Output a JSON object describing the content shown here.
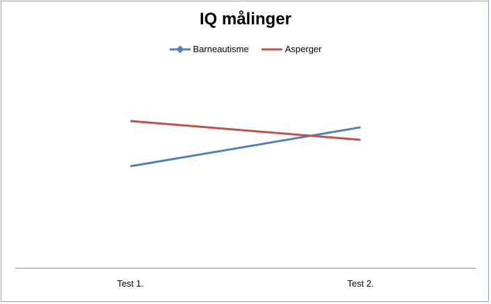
{
  "chart_data": {
    "type": "line",
    "title": "IQ målinger",
    "categories": [
      "Test 1.",
      "Test 2."
    ],
    "series": [
      {
        "name": "Barneautisme",
        "values": [
          46,
          102
        ],
        "color": "#4f81bd",
        "marker": "diamond"
      },
      {
        "name": "Asperger",
        "values": [
          111,
          84
        ],
        "color": "#c0504d",
        "marker": "none"
      }
    ],
    "ylim": [
      -100,
      170
    ],
    "xlabel": "",
    "ylabel": "",
    "grid": false,
    "legend_position": "top"
  }
}
